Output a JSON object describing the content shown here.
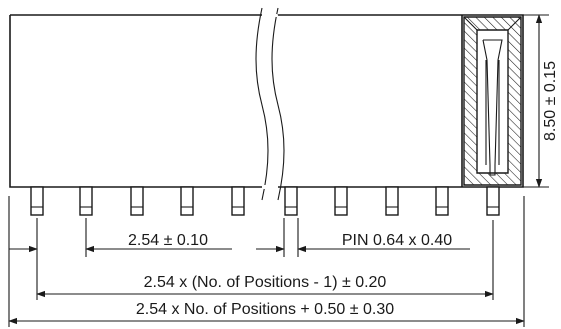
{
  "dimensions": {
    "pitch": "2.54 ± 0.10",
    "pin": "PIN 0.64 x 0.40",
    "height": "8.50 ± 0.15",
    "span": "2.54 x (No. of Positions - 1) ± 0.20",
    "overall": "2.54 x No. of Positions + 0.50 ± 0.30"
  }
}
